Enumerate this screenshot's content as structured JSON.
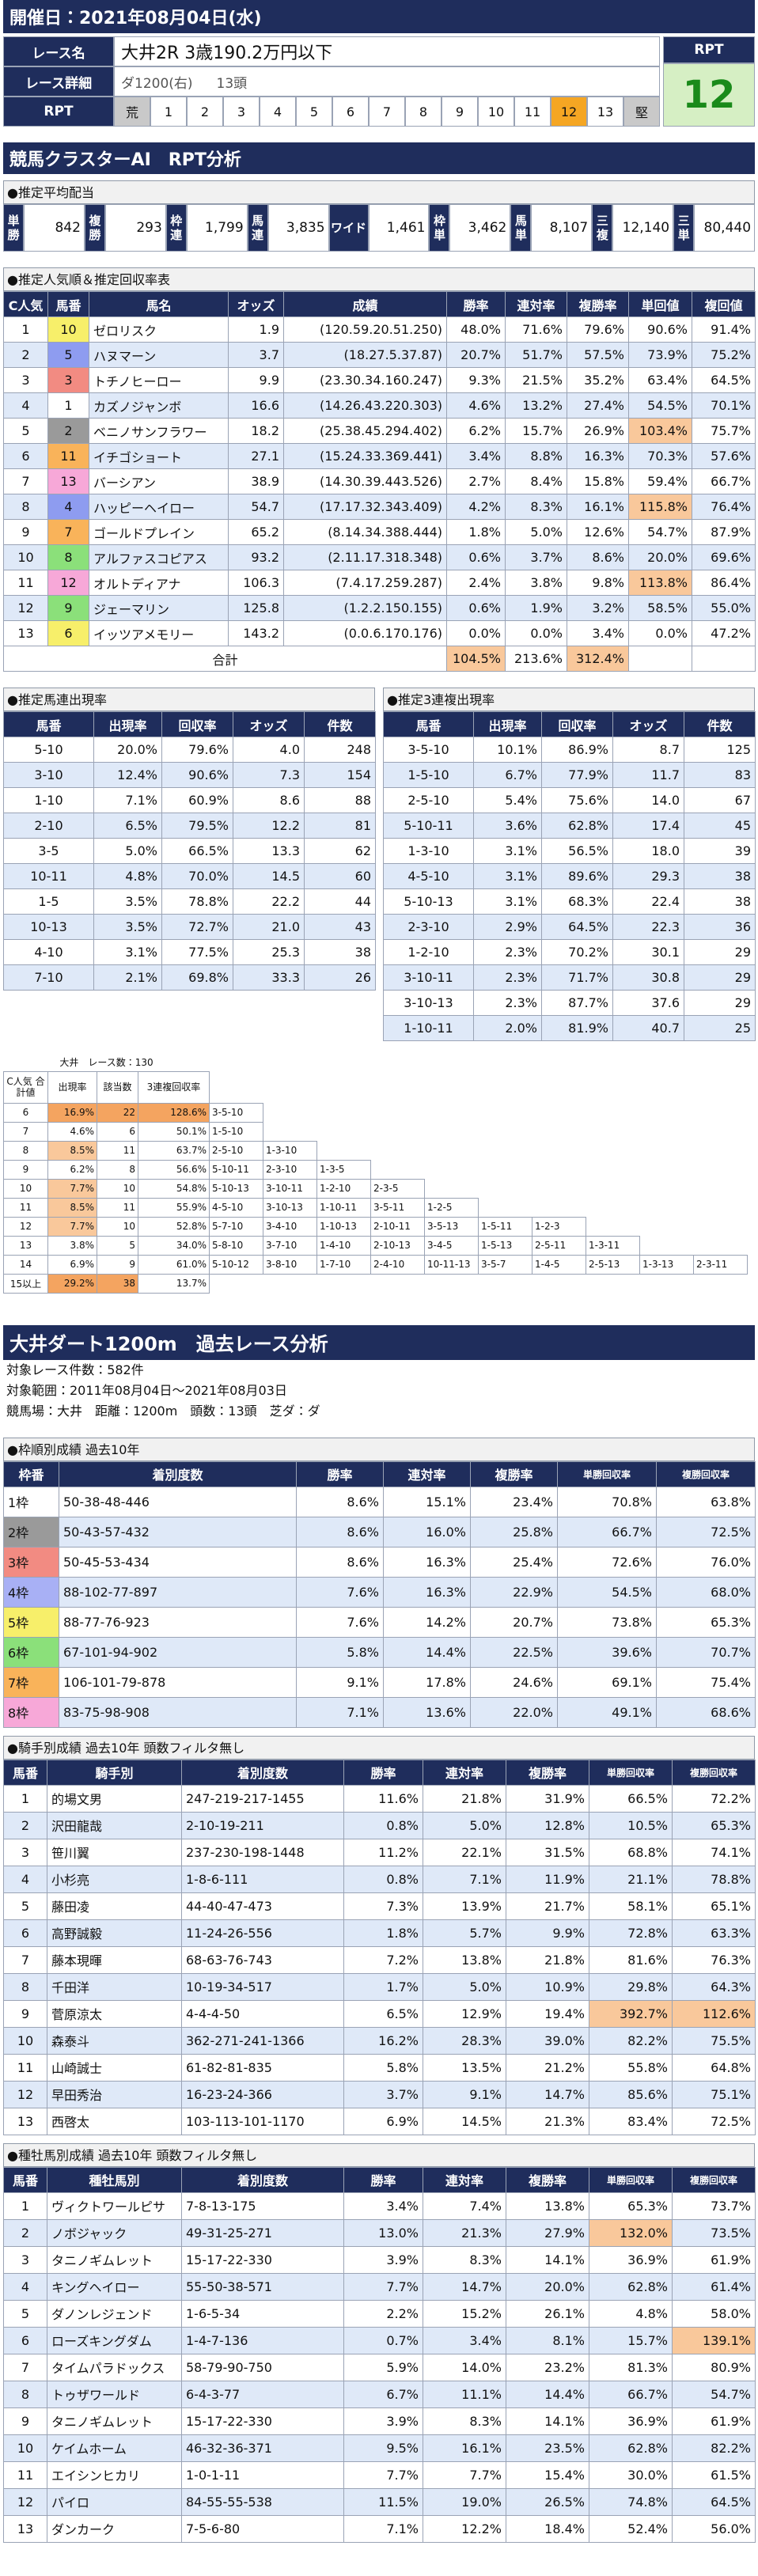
{
  "header": {
    "date": "開催日：2021年08月04日(水)"
  },
  "race": {
    "name_label": "レース名",
    "name": "大井2R 3歳190.2万円以下",
    "detail_label": "レース詳細",
    "detail": "ダ1200(右)",
    "heads": "13頭",
    "rpt_label": "RPT",
    "rpt_scale": [
      "荒",
      "1",
      "2",
      "3",
      "4",
      "5",
      "6",
      "7",
      "8",
      "9",
      "10",
      "11",
      "12",
      "13",
      "堅"
    ],
    "rpt_box_label": "RPT",
    "rpt_value": "12"
  },
  "ai": {
    "title": "競馬クラスターAI　RPT分析"
  },
  "payout": {
    "title": "●推定平均配当",
    "items": [
      {
        "label": "単勝",
        "value": "842"
      },
      {
        "label": "複勝",
        "value": "293"
      },
      {
        "label": "枠連",
        "value": "1,799"
      },
      {
        "label": "馬連",
        "value": "3,835"
      },
      {
        "label": "ワイド",
        "value": "1,461"
      },
      {
        "label": "枠単",
        "value": "3,462"
      },
      {
        "label": "馬単",
        "value": "8,107"
      },
      {
        "label": "三複",
        "value": "12,140"
      },
      {
        "label": "三単",
        "value": "80,440"
      }
    ]
  },
  "popularity": {
    "title": "●推定人気順＆推定回収率表",
    "columns": [
      "C人気",
      "馬番",
      "馬名",
      "オッズ",
      "成績",
      "勝率",
      "連対率",
      "複勝率",
      "単回値",
      "複回値"
    ],
    "rows": [
      [
        "1",
        "10",
        "ゼロリスク",
        "1.9",
        "(120.59.20.51.250)",
        "48.0%",
        "71.6%",
        "79.6%",
        "90.6%",
        "91.4%"
      ],
      [
        "2",
        "5",
        "ハヌマーン",
        "3.7",
        "(18.27.5.37.87)",
        "20.7%",
        "51.7%",
        "57.5%",
        "73.9%",
        "75.2%"
      ],
      [
        "3",
        "3",
        "トチノヒーロー",
        "9.9",
        "(23.30.34.160.247)",
        "9.3%",
        "21.5%",
        "35.2%",
        "63.4%",
        "64.5%"
      ],
      [
        "4",
        "1",
        "カズノジャンボ",
        "16.6",
        "(14.26.43.220.303)",
        "4.6%",
        "13.2%",
        "27.4%",
        "54.5%",
        "70.1%"
      ],
      [
        "5",
        "2",
        "ベニノサンフラワー",
        "18.2",
        "(25.38.45.294.402)",
        "6.2%",
        "15.7%",
        "26.9%",
        "103.4%",
        "75.7%"
      ],
      [
        "6",
        "11",
        "イチゴショート",
        "27.1",
        "(15.24.33.369.441)",
        "3.4%",
        "8.8%",
        "16.3%",
        "70.3%",
        "57.6%"
      ],
      [
        "7",
        "13",
        "バーシアン",
        "38.9",
        "(14.30.39.443.526)",
        "2.7%",
        "8.4%",
        "15.8%",
        "59.4%",
        "66.7%"
      ],
      [
        "8",
        "4",
        "ハッピーヘイロー",
        "54.7",
        "(17.17.32.343.409)",
        "4.2%",
        "8.3%",
        "16.1%",
        "115.8%",
        "76.4%"
      ],
      [
        "9",
        "7",
        "ゴールドプレイン",
        "65.2",
        "(8.14.34.388.444)",
        "1.8%",
        "5.0%",
        "12.6%",
        "54.7%",
        "87.9%"
      ],
      [
        "10",
        "8",
        "アルファスコピアス",
        "93.2",
        "(2.11.17.318.348)",
        "0.6%",
        "3.7%",
        "8.6%",
        "20.0%",
        "69.6%"
      ],
      [
        "11",
        "12",
        "オルトディアナ",
        "106.3",
        "(7.4.17.259.287)",
        "2.4%",
        "3.8%",
        "9.8%",
        "113.8%",
        "86.4%"
      ],
      [
        "12",
        "9",
        "ジェーマリン",
        "125.8",
        "(1.2.2.150.155)",
        "0.6%",
        "1.9%",
        "3.2%",
        "58.5%",
        "55.0%"
      ],
      [
        "13",
        "6",
        "イッツアメモリー",
        "143.2",
        "(0.0.6.170.176)",
        "0.0%",
        "0.0%",
        "3.4%",
        "0.0%",
        "47.2%"
      ]
    ],
    "total": {
      "label": "合計",
      "values": [
        "104.5%",
        "213.6%",
        "312.4%"
      ]
    }
  },
  "umaren": {
    "title": "●推定馬連出現率",
    "columns": [
      "馬番",
      "出現率",
      "回収率",
      "オッズ",
      "件数"
    ],
    "rows": [
      [
        "5-10",
        "20.0%",
        "79.6%",
        "4.0",
        "248"
      ],
      [
        "3-10",
        "12.4%",
        "90.6%",
        "7.3",
        "154"
      ],
      [
        "1-10",
        "7.1%",
        "60.9%",
        "8.6",
        "88"
      ],
      [
        "2-10",
        "6.5%",
        "79.5%",
        "12.2",
        "81"
      ],
      [
        "3-5",
        "5.0%",
        "66.5%",
        "13.3",
        "62"
      ],
      [
        "10-11",
        "4.8%",
        "70.0%",
        "14.5",
        "60"
      ],
      [
        "1-5",
        "3.5%",
        "78.8%",
        "22.2",
        "44"
      ],
      [
        "10-13",
        "3.5%",
        "72.7%",
        "21.0",
        "43"
      ],
      [
        "4-10",
        "3.1%",
        "77.5%",
        "25.3",
        "38"
      ],
      [
        "7-10",
        "2.1%",
        "69.8%",
        "33.3",
        "26"
      ]
    ]
  },
  "sanrenpuku": {
    "title": "●推定3連複出現率",
    "columns": [
      "馬番",
      "出現率",
      "回収率",
      "オッズ",
      "件数"
    ],
    "rows": [
      [
        "3-5-10",
        "10.1%",
        "86.9%",
        "8.7",
        "125"
      ],
      [
        "1-5-10",
        "6.7%",
        "77.9%",
        "11.7",
        "83"
      ],
      [
        "2-5-10",
        "5.4%",
        "75.6%",
        "14.0",
        "67"
      ],
      [
        "5-10-11",
        "3.6%",
        "62.8%",
        "17.4",
        "45"
      ],
      [
        "1-3-10",
        "3.1%",
        "56.5%",
        "18.0",
        "39"
      ],
      [
        "4-5-10",
        "3.1%",
        "89.6%",
        "29.3",
        "38"
      ],
      [
        "5-10-13",
        "3.1%",
        "68.3%",
        "22.4",
        "38"
      ],
      [
        "2-3-10",
        "2.9%",
        "64.5%",
        "22.3",
        "36"
      ],
      [
        "1-2-10",
        "2.3%",
        "70.2%",
        "30.1",
        "29"
      ],
      [
        "3-10-11",
        "2.3%",
        "71.7%",
        "30.8",
        "29"
      ],
      [
        "3-10-13",
        "2.3%",
        "87.7%",
        "37.6",
        "29"
      ],
      [
        "1-10-11",
        "2.0%",
        "81.9%",
        "40.7",
        "25"
      ]
    ]
  },
  "c_sum": {
    "caption": "大井　レース数：130",
    "columns": [
      "C人気 合計値",
      "出現率",
      "該当数",
      "3連複回収率"
    ],
    "rows": [
      {
        "cells": [
          "6",
          "16.9%",
          "22",
          "128.6%"
        ],
        "combos": [
          "3-5-10"
        ]
      },
      {
        "cells": [
          "7",
          "4.6%",
          "6",
          "50.1%"
        ],
        "combos": [
          "1-5-10"
        ]
      },
      {
        "cells": [
          "8",
          "8.5%",
          "11",
          "63.7%"
        ],
        "combos": [
          "2-5-10",
          "1-3-10"
        ]
      },
      {
        "cells": [
          "9",
          "6.2%",
          "8",
          "56.6%"
        ],
        "combos": [
          "5-10-11",
          "2-3-10",
          "1-3-5"
        ]
      },
      {
        "cells": [
          "10",
          "7.7%",
          "10",
          "54.8%"
        ],
        "combos": [
          "5-10-13",
          "3-10-11",
          "1-2-10",
          "2-3-5"
        ]
      },
      {
        "cells": [
          "11",
          "8.5%",
          "11",
          "55.9%"
        ],
        "combos": [
          "4-5-10",
          "3-10-13",
          "1-10-11",
          "3-5-11",
          "1-2-5"
        ]
      },
      {
        "cells": [
          "12",
          "7.7%",
          "10",
          "52.8%"
        ],
        "combos": [
          "5-7-10",
          "3-4-10",
          "1-10-13",
          "2-10-11",
          "3-5-13",
          "1-5-11",
          "1-2-3"
        ]
      },
      {
        "cells": [
          "13",
          "3.8%",
          "5",
          "34.0%"
        ],
        "combos": [
          "5-8-10",
          "3-7-10",
          "1-4-10",
          "2-10-13",
          "3-4-5",
          "1-5-13",
          "2-5-11",
          "1-3-11"
        ]
      },
      {
        "cells": [
          "14",
          "6.9%",
          "9",
          "61.0%"
        ],
        "combos": [
          "5-10-12",
          "3-8-10",
          "1-7-10",
          "2-4-10",
          "10-11-13",
          "3-5-7",
          "1-4-5",
          "2-5-13",
          "1-3-13",
          "2-3-11"
        ]
      },
      {
        "cells": [
          "15以上",
          "29.2%",
          "38",
          "13.7%"
        ],
        "combos": []
      }
    ]
  },
  "course": {
    "title": "大井ダート1200m　過去レース分析",
    "lines": [
      "対象レース件数：582件",
      "対象範囲：2011年08月04日～2021年08月03日",
      "競馬場：大井　距離：1200m　頭数：13頭　芝ダ：ダ"
    ]
  },
  "frame": {
    "title": "●枠順別成績 過去10年",
    "columns": [
      "枠番",
      "着別度数",
      "勝率",
      "連対率",
      "複勝率",
      "単勝回収率",
      "複勝回収率"
    ],
    "rows": [
      [
        "1枠",
        "50-38-48-446",
        "8.6%",
        "15.1%",
        "23.4%",
        "70.8%",
        "63.8%"
      ],
      [
        "2枠",
        "50-43-57-432",
        "8.6%",
        "16.0%",
        "25.8%",
        "66.7%",
        "72.5%"
      ],
      [
        "3枠",
        "50-45-53-434",
        "8.6%",
        "16.3%",
        "25.4%",
        "72.6%",
        "76.0%"
      ],
      [
        "4枠",
        "88-102-77-897",
        "7.6%",
        "16.3%",
        "22.9%",
        "54.5%",
        "68.0%"
      ],
      [
        "5枠",
        "88-77-76-923",
        "7.6%",
        "14.2%",
        "20.7%",
        "73.8%",
        "65.3%"
      ],
      [
        "6枠",
        "67-101-94-902",
        "5.8%",
        "14.4%",
        "22.5%",
        "39.6%",
        "70.7%"
      ],
      [
        "7枠",
        "106-101-79-878",
        "9.1%",
        "17.8%",
        "24.6%",
        "69.1%",
        "75.4%"
      ],
      [
        "8枠",
        "83-75-98-908",
        "7.1%",
        "13.6%",
        "22.0%",
        "49.1%",
        "68.6%"
      ]
    ]
  },
  "jockey": {
    "title": "●騎手別成績 過去10年 頭数フィルタ無し",
    "columns": [
      "馬番",
      "騎手別",
      "着別度数",
      "勝率",
      "連対率",
      "複勝率",
      "単勝回収率",
      "複勝回収率"
    ],
    "rows": [
      [
        "1",
        "的場文男",
        "247-219-217-1455",
        "11.6%",
        "21.8%",
        "31.9%",
        "66.5%",
        "72.2%"
      ],
      [
        "2",
        "沢田龍哉",
        "2-10-19-211",
        "0.8%",
        "5.0%",
        "12.8%",
        "10.5%",
        "65.3%"
      ],
      [
        "3",
        "笹川翼",
        "237-230-198-1448",
        "11.2%",
        "22.1%",
        "31.5%",
        "68.8%",
        "74.1%"
      ],
      [
        "4",
        "小杉亮",
        "1-8-6-111",
        "0.8%",
        "7.1%",
        "11.9%",
        "21.1%",
        "78.8%"
      ],
      [
        "5",
        "藤田凌",
        "44-40-47-473",
        "7.3%",
        "13.9%",
        "21.7%",
        "58.1%",
        "65.1%"
      ],
      [
        "6",
        "高野誠毅",
        "11-24-26-556",
        "1.8%",
        "5.7%",
        "9.9%",
        "72.8%",
        "63.3%"
      ],
      [
        "7",
        "藤本現暉",
        "68-63-76-743",
        "7.2%",
        "13.8%",
        "21.8%",
        "81.6%",
        "76.3%"
      ],
      [
        "8",
        "千田洋",
        "10-19-34-517",
        "1.7%",
        "5.0%",
        "10.9%",
        "29.8%",
        "64.3%"
      ],
      [
        "9",
        "菅原涼太",
        "4-4-4-50",
        "6.5%",
        "12.9%",
        "19.4%",
        "392.7%",
        "112.6%"
      ],
      [
        "10",
        "森泰斗",
        "362-271-241-1366",
        "16.2%",
        "28.3%",
        "39.0%",
        "82.2%",
        "75.5%"
      ],
      [
        "11",
        "山崎誠士",
        "61-82-81-835",
        "5.8%",
        "13.5%",
        "21.2%",
        "55.8%",
        "64.8%"
      ],
      [
        "12",
        "早田秀治",
        "16-23-24-366",
        "3.7%",
        "9.1%",
        "14.7%",
        "85.6%",
        "75.1%"
      ],
      [
        "13",
        "西啓太",
        "103-113-101-1170",
        "6.9%",
        "14.5%",
        "21.3%",
        "83.4%",
        "72.5%"
      ]
    ]
  },
  "sire": {
    "title": "●種牡馬別成績 過去10年 頭数フィルタ無し",
    "columns": [
      "馬番",
      "種牡馬別",
      "着別度数",
      "勝率",
      "連対率",
      "複勝率",
      "単勝回収率",
      "複勝回収率"
    ],
    "rows": [
      [
        "1",
        "ヴィクトワールピサ",
        "7-8-13-175",
        "3.4%",
        "7.4%",
        "13.8%",
        "65.3%",
        "73.7%"
      ],
      [
        "2",
        "ノボジャック",
        "49-31-25-271",
        "13.0%",
        "21.3%",
        "27.9%",
        "132.0%",
        "73.5%"
      ],
      [
        "3",
        "タニノギムレット",
        "15-17-22-330",
        "3.9%",
        "8.3%",
        "14.1%",
        "36.9%",
        "61.9%"
      ],
      [
        "4",
        "キングヘイロー",
        "55-50-38-571",
        "7.7%",
        "14.7%",
        "20.0%",
        "62.8%",
        "61.4%"
      ],
      [
        "5",
        "ダノンレジェンド",
        "1-6-5-34",
        "2.2%",
        "15.2%",
        "26.1%",
        "4.8%",
        "58.0%"
      ],
      [
        "6",
        "ローズキングダム",
        "1-4-7-136",
        "0.7%",
        "3.4%",
        "8.1%",
        "15.7%",
        "139.1%"
      ],
      [
        "7",
        "タイムパラドックス",
        "58-79-90-750",
        "5.9%",
        "14.0%",
        "23.2%",
        "81.3%",
        "80.9%"
      ],
      [
        "8",
        "トゥザワールド",
        "6-4-3-77",
        "6.7%",
        "11.1%",
        "14.4%",
        "66.7%",
        "54.7%"
      ],
      [
        "9",
        "タニノギムレット",
        "15-17-22-330",
        "3.9%",
        "8.3%",
        "14.1%",
        "36.9%",
        "61.9%"
      ],
      [
        "10",
        "ケイムホーム",
        "46-32-36-371",
        "9.5%",
        "16.1%",
        "23.5%",
        "62.8%",
        "82.2%"
      ],
      [
        "11",
        "エイシンヒカリ",
        "1-0-1-11",
        "7.7%",
        "7.7%",
        "15.4%",
        "30.0%",
        "61.5%"
      ],
      [
        "12",
        "パイロ",
        "84-55-55-538",
        "11.5%",
        "19.0%",
        "26.5%",
        "74.8%",
        "64.5%"
      ],
      [
        "13",
        "ダンカーク",
        "7-5-6-80",
        "7.1%",
        "12.2%",
        "18.4%",
        "52.4%",
        "56.0%"
      ]
    ]
  }
}
